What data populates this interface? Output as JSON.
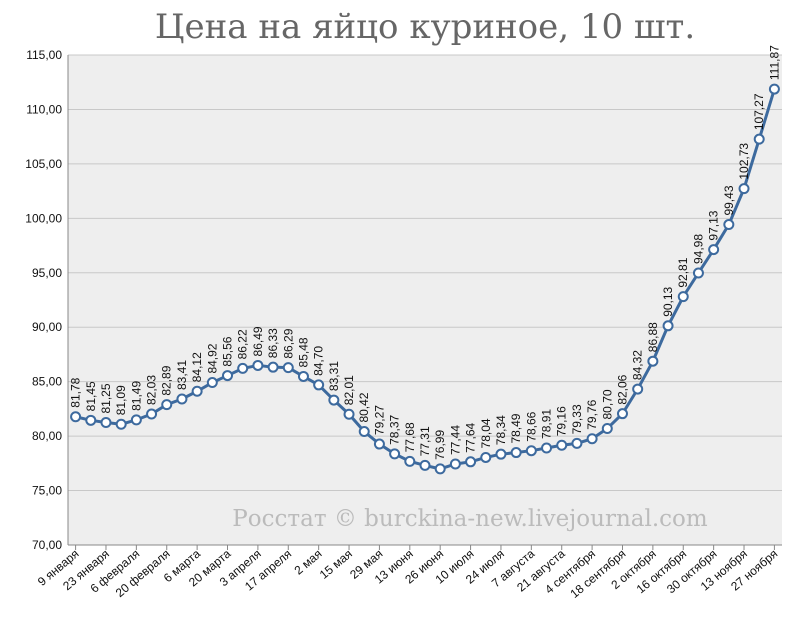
{
  "chart_data": {
    "type": "line",
    "title": "Цена на яйцо куриное, 10 шт.",
    "annotation": "Росстат © burckina-new.livejournal.com",
    "categories": [
      "9 января",
      null,
      "23 января",
      null,
      "6 февраля",
      null,
      "20 февраля",
      null,
      "6 марта",
      null,
      "20 марта",
      null,
      "3 апреля",
      null,
      "17 апреля",
      null,
      "2 мая",
      null,
      "15 мая",
      null,
      "29 мая",
      null,
      "13 июня",
      null,
      "26 июня",
      null,
      "10 июля",
      null,
      "24 июля",
      null,
      "7 августа",
      null,
      "21 августа",
      null,
      "4 сентября",
      null,
      "18 сентября",
      null,
      "2 октября",
      null,
      "16 октября",
      null,
      "30 октября",
      null,
      "13 ноября",
      null,
      "27 ноября"
    ],
    "series": [
      {
        "color": "#3d6a9e",
        "values": [
          81.78,
          81.45,
          81.25,
          81.09,
          81.49,
          82.03,
          82.89,
          83.41,
          84.12,
          84.92,
          85.56,
          86.22,
          86.49,
          86.33,
          86.29,
          85.48,
          84.7,
          83.31,
          82.01,
          80.42,
          79.27,
          78.37,
          77.68,
          77.31,
          76.99,
          77.44,
          77.64,
          78.04,
          78.34,
          78.49,
          78.66,
          78.91,
          79.16,
          79.33,
          79.76,
          80.7,
          82.06,
          84.32,
          86.88,
          90.13,
          92.81,
          94.98,
          97.13,
          99.43,
          102.73,
          107.27,
          111.87
        ],
        "value_labels": [
          "81,78",
          "81,45",
          "81,25",
          "81,09",
          "81,49",
          "82,03",
          "82,89",
          "83,41",
          "84,12",
          "84,92",
          "85,56",
          "86,22",
          "86,49",
          "86,33",
          "86,29",
          "85,48",
          "84,70",
          "83,31",
          "82,01",
          "80,42",
          "79,27",
          "78,37",
          "77,68",
          "77,31",
          "76,99",
          "77,44",
          "77,64",
          "78,04",
          "78,34",
          "78,49",
          "78,66",
          "78,91",
          "79,16",
          "79,33",
          "79,76",
          "80,70",
          "82,06",
          "84,32",
          "86,88",
          "90,13",
          "92,81",
          "94,98",
          "97,13",
          "99,43",
          "102,73",
          "107,27",
          "111,87"
        ]
      }
    ],
    "ylim": [
      70,
      115
    ],
    "yticks": [
      {
        "value": 70,
        "label": "70,00"
      },
      {
        "value": 75,
        "label": "75,00"
      },
      {
        "value": 80,
        "label": "80,00"
      },
      {
        "value": 85,
        "label": "85,00"
      },
      {
        "value": 90,
        "label": "90,00"
      },
      {
        "value": 95,
        "label": "95,00"
      },
      {
        "value": 100,
        "label": "100,00"
      },
      {
        "value": 105,
        "label": "105,00"
      },
      {
        "value": 110,
        "label": "110,00"
      },
      {
        "value": 115,
        "label": "115,00"
      }
    ],
    "grid": true
  }
}
